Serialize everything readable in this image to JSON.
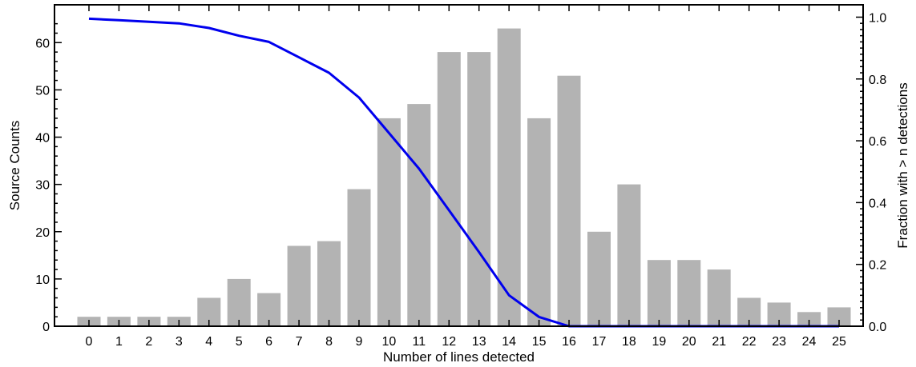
{
  "chart_data": {
    "type": "bar",
    "xlabel": "Number of lines detected",
    "ylabel": "Source Counts",
    "y2label": "Fraction with > n detections",
    "categories": [
      "0",
      "1",
      "2",
      "3",
      "4",
      "5",
      "6",
      "7",
      "8",
      "9",
      "10",
      "11",
      "12",
      "13",
      "14",
      "15",
      "16",
      "17",
      "18",
      "19",
      "20",
      "21",
      "22",
      "23",
      "24",
      "25"
    ],
    "ylim": [
      0,
      68
    ],
    "y2lim": [
      0,
      1.04
    ],
    "yticks": [
      "0",
      "10",
      "20",
      "30",
      "40",
      "50",
      "60"
    ],
    "y2ticks": [
      "0.0",
      "0.2",
      "0.4",
      "0.6",
      "0.8",
      "1.0"
    ],
    "series": [
      {
        "type": "bar",
        "axis": "left",
        "color": "#b3b3b3",
        "values": [
          2,
          2,
          2,
          2,
          6,
          10,
          7,
          17,
          18,
          29,
          44,
          47,
          58,
          58,
          63,
          44,
          53,
          20,
          30,
          14,
          14,
          12,
          6,
          5,
          3,
          4
        ]
      },
      {
        "type": "line",
        "axis": "right",
        "color": "#0000ee",
        "values": [
          0.995,
          0.99,
          0.985,
          0.98,
          0.965,
          0.94,
          0.92,
          0.87,
          0.82,
          0.74,
          0.625,
          0.51,
          0.375,
          0.24,
          0.1,
          0.03,
          0.0,
          0.0,
          0.0,
          0.0,
          0.0,
          0.0,
          0.0,
          0.0,
          0.0,
          0.0
        ],
        "x": [
          0,
          1,
          2,
          3,
          4,
          5,
          6,
          7,
          8,
          9,
          10,
          11,
          12,
          13,
          14,
          15,
          16,
          17,
          18,
          19,
          20,
          21,
          22,
          23,
          24,
          25
        ]
      }
    ],
    "grid": false,
    "legend": "none"
  }
}
